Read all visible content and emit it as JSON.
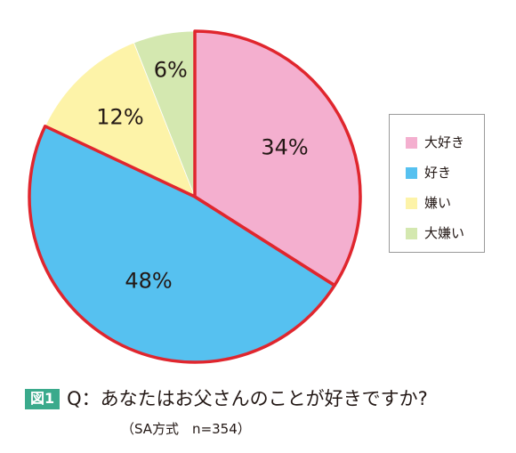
{
  "chart_data": {
    "type": "pie",
    "title": "",
    "categories": [
      "大好き",
      "好き",
      "嫌い",
      "大嫌い"
    ],
    "values": [
      34,
      48,
      12,
      6
    ],
    "labels": [
      "34%",
      "48%",
      "12%",
      "6%"
    ],
    "colors": [
      "#f4afcf",
      "#56c1f0",
      "#fdf3a8",
      "#d4e8b0"
    ],
    "highlight_border_color": "#e0262e",
    "legend_position": "right"
  },
  "legend": {
    "items": [
      {
        "label": "大好き",
        "color": "#f4afcf"
      },
      {
        "label": "好き",
        "color": "#56c1f0"
      },
      {
        "label": "嫌い",
        "color": "#fdf3a8"
      },
      {
        "label": "大嫌い",
        "color": "#d4e8b0"
      }
    ]
  },
  "caption": {
    "badge": "図1",
    "question": "Q：あなたはお父さんのことが好きですか?",
    "note": "（SA方式　n=354）",
    "badge_color": "#3aaa8c"
  }
}
